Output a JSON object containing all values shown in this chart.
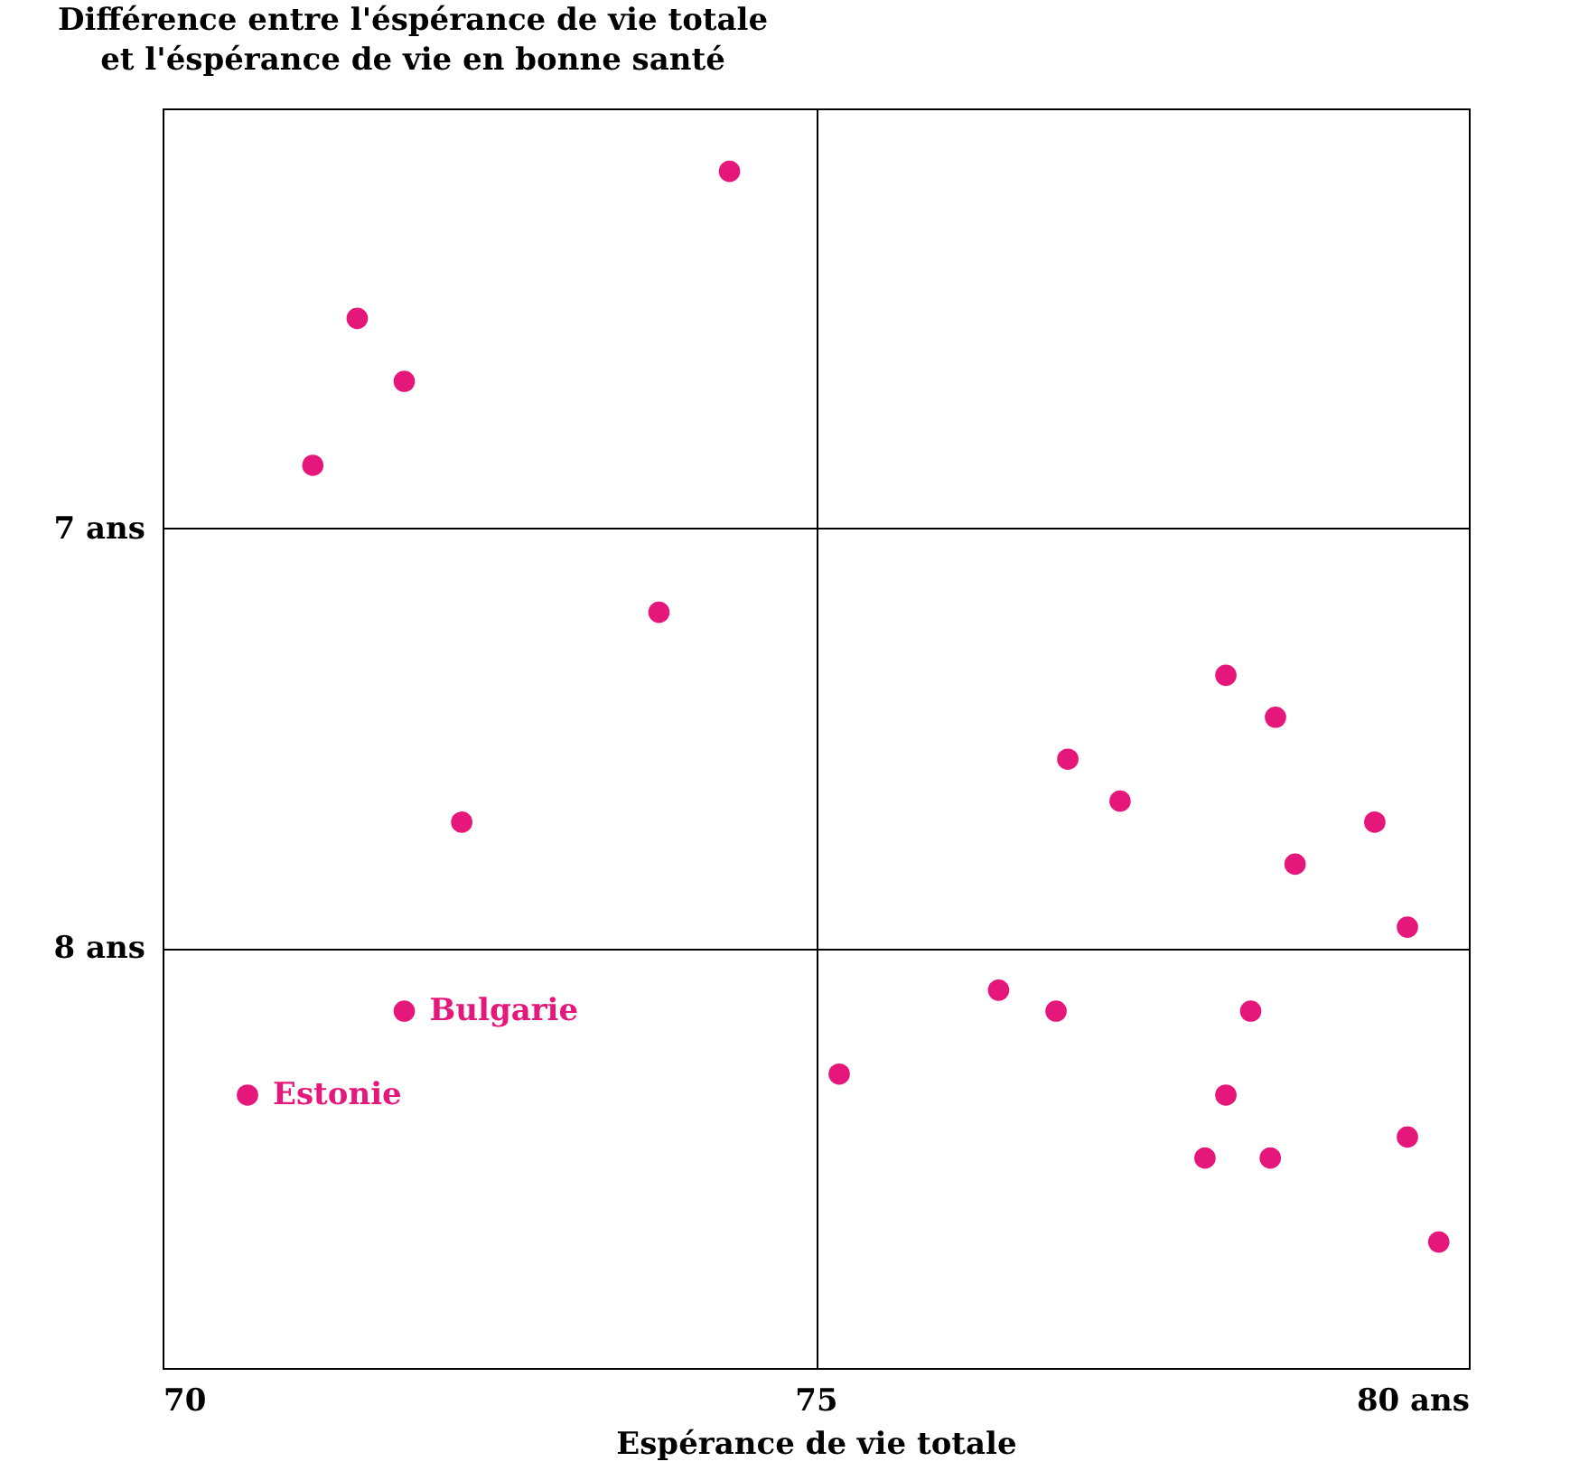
{
  "chart_data": {
    "type": "scatter",
    "xlabel": "Espérance de vie totale",
    "ylabel": "Différence entre l'éspérance de vie totale\net l'éspérance de vie en bonne santé",
    "x": [
      74.34,
      71.49,
      71.85,
      71.15,
      73.8,
      72.29,
      71.85,
      70.65,
      78.14,
      78.52,
      76.93,
      77.33,
      79.28,
      78.67,
      79.53,
      76.4,
      76.84,
      78.33,
      75.18,
      78.14,
      77.98,
      78.48,
      79.53,
      79.77
    ],
    "series": [
      {
        "color": "#e6177a",
        "values": [
          6.15,
          6.5,
          6.65,
          6.85,
          7.2,
          7.7,
          8.15,
          8.35,
          7.35,
          7.45,
          7.55,
          7.65,
          7.7,
          7.8,
          7.95,
          8.1,
          8.15,
          8.15,
          8.3,
          8.35,
          8.5,
          8.5,
          8.45,
          8.7
        ]
      }
    ],
    "xlim": [
      70,
      80
    ],
    "xticks": [
      70,
      75,
      {
        "value": 80,
        "label": "80 ans"
      }
    ],
    "ylim": [
      9,
      6
    ],
    "yticks": [
      {
        "value": 7,
        "label": "7 ans"
      },
      {
        "value": 8,
        "label": "8 ans"
      }
    ],
    "grid": true,
    "marker": "circle",
    "annotations": [
      {
        "text": "Bulgarie",
        "x": 71.85,
        "y": 8.15
      },
      {
        "text": "Estonie",
        "x": 70.65,
        "y": 8.35
      }
    ]
  }
}
